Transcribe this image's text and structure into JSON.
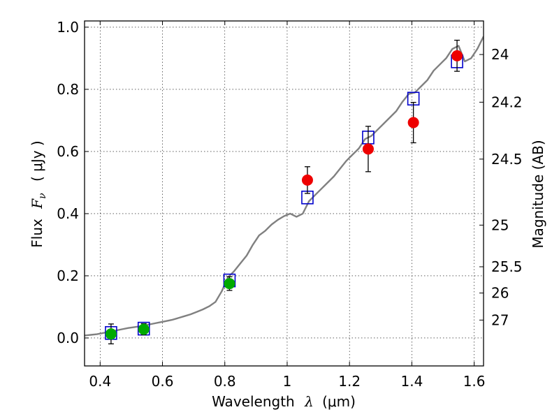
{
  "chart_data": {
    "type": "scatter",
    "xlabel": "Wavelength",
    "xlabel_symbol": "λ",
    "xlabel_unit": "(μm)",
    "ylabel": "Flux",
    "ylabel_symbol": "F",
    "ylabel_subscript": "ν",
    "ylabel_unit": "( μJy )",
    "y2label": "Magnitude (AB)",
    "xlim": [
      0.35,
      1.63
    ],
    "ylim": [
      -0.09,
      1.02
    ],
    "grid": true,
    "x_ticks": [
      0.4,
      0.6,
      0.8,
      1.0,
      1.2,
      1.4,
      1.6
    ],
    "x_tick_labels": [
      "0.4",
      "0.6",
      "0.8",
      "1",
      "1.2",
      "1.4",
      "1.6"
    ],
    "y_ticks": [
      0.0,
      0.2,
      0.4,
      0.6,
      0.8,
      1.0
    ],
    "y_tick_labels": [
      "0.0",
      "0.2",
      "0.4",
      "0.6",
      "0.8",
      "1.0"
    ],
    "y2_ticks": [
      24,
      24.2,
      24.5,
      25,
      25.5,
      26,
      27
    ],
    "y2_tick_labels": [
      "24",
      "24.2",
      "24.5",
      "25",
      "25.5",
      "26",
      "27"
    ],
    "series": [
      {
        "kind": "line",
        "color": "#808080",
        "x": [
          0.35,
          0.37,
          0.39,
          0.41,
          0.43,
          0.45,
          0.47,
          0.49,
          0.51,
          0.53,
          0.55,
          0.57,
          0.59,
          0.61,
          0.63,
          0.65,
          0.67,
          0.69,
          0.71,
          0.73,
          0.75,
          0.77,
          0.79,
          0.81,
          0.83,
          0.85,
          0.87,
          0.89,
          0.91,
          0.93,
          0.95,
          0.97,
          0.99,
          1.01,
          1.03,
          1.05,
          1.07,
          1.09,
          1.11,
          1.13,
          1.15,
          1.17,
          1.19,
          1.21,
          1.23,
          1.25,
          1.27,
          1.29,
          1.31,
          1.33,
          1.35,
          1.37,
          1.39,
          1.41,
          1.43,
          1.45,
          1.47,
          1.49,
          1.51,
          1.53,
          1.55,
          1.57,
          1.59,
          1.61,
          1.63
        ],
        "y": [
          0.008,
          0.01,
          0.012,
          0.016,
          0.02,
          0.024,
          0.028,
          0.032,
          0.035,
          0.038,
          0.042,
          0.046,
          0.05,
          0.054,
          0.058,
          0.064,
          0.07,
          0.076,
          0.084,
          0.092,
          0.102,
          0.116,
          0.15,
          0.195,
          0.215,
          0.24,
          0.265,
          0.3,
          0.33,
          0.345,
          0.365,
          0.38,
          0.392,
          0.4,
          0.39,
          0.4,
          0.44,
          0.46,
          0.48,
          0.5,
          0.52,
          0.545,
          0.57,
          0.59,
          0.61,
          0.64,
          0.65,
          0.67,
          0.69,
          0.71,
          0.73,
          0.76,
          0.785,
          0.79,
          0.81,
          0.83,
          0.86,
          0.88,
          0.9,
          0.93,
          0.94,
          0.89,
          0.9,
          0.93,
          0.97
        ]
      },
      {
        "kind": "squares",
        "color": "#0000cc",
        "x": [
          0.435,
          0.54,
          0.815,
          1.065,
          1.26,
          1.405,
          1.545
        ],
        "y": [
          0.016,
          0.03,
          0.185,
          0.452,
          0.645,
          0.77,
          0.89
        ]
      },
      {
        "kind": "points",
        "color": "#00aa00",
        "x": [
          0.435,
          0.54,
          0.815
        ],
        "y": [
          0.013,
          0.028,
          0.175
        ],
        "yerr": [
          0.032,
          0.018,
          0.022
        ]
      },
      {
        "kind": "points",
        "color": "#ee0000",
        "x": [
          1.065,
          1.26,
          1.405,
          1.545
        ],
        "y": [
          0.508,
          0.608,
          0.693,
          0.908
        ],
        "yerr": [
          0.043,
          0.073,
          0.065,
          0.05
        ]
      }
    ]
  }
}
